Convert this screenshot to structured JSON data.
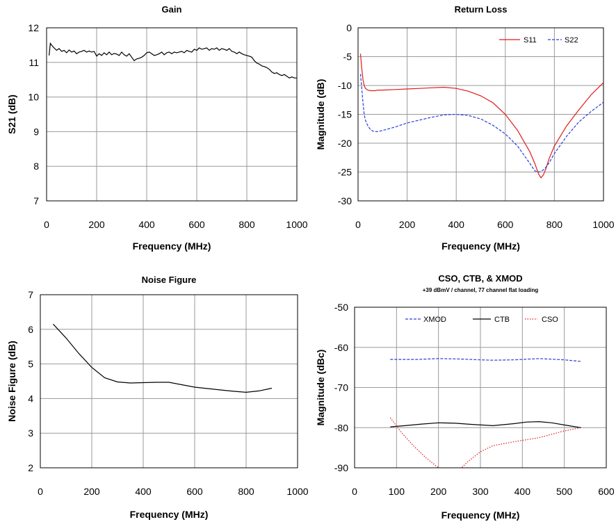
{
  "chart_data": [
    {
      "id": "gain",
      "type": "line",
      "title": "Gain",
      "xlabel": "Frequency (MHz)",
      "ylabel": "S21 (dB)",
      "xlim": [
        0,
        1000
      ],
      "ylim": [
        7,
        12
      ],
      "xticks": [
        "0",
        "200",
        "400",
        "600",
        "800",
        "1000"
      ],
      "yticks": [
        "7",
        "8",
        "9",
        "10",
        "11",
        "12"
      ],
      "grid": true,
      "legend": "none",
      "series": [
        {
          "color": "#000000",
          "dash": "solid",
          "x": [
            10,
            15,
            20,
            30,
            40,
            50,
            60,
            70,
            80,
            90,
            100,
            110,
            120,
            130,
            140,
            150,
            160,
            170,
            180,
            190,
            200,
            210,
            220,
            230,
            240,
            250,
            260,
            270,
            280,
            290,
            300,
            310,
            320,
            330,
            340,
            350,
            360,
            370,
            380,
            390,
            400,
            410,
            420,
            430,
            440,
            450,
            460,
            470,
            480,
            490,
            500,
            510,
            520,
            530,
            540,
            550,
            560,
            570,
            580,
            590,
            600,
            610,
            620,
            630,
            640,
            650,
            660,
            670,
            680,
            690,
            700,
            710,
            720,
            730,
            740,
            750,
            760,
            770,
            780,
            790,
            800,
            810,
            820,
            830,
            840,
            850,
            860,
            870,
            880,
            890,
            900,
            910,
            920,
            930,
            940,
            950,
            960,
            970,
            980,
            990,
            1000
          ],
          "values": [
            11.2,
            11.55,
            11.5,
            11.42,
            11.35,
            11.4,
            11.32,
            11.35,
            11.28,
            11.36,
            11.3,
            11.33,
            11.25,
            11.3,
            11.32,
            11.35,
            11.3,
            11.33,
            11.3,
            11.32,
            11.18,
            11.25,
            11.2,
            11.28,
            11.22,
            11.3,
            11.22,
            11.26,
            11.24,
            11.2,
            11.3,
            11.22,
            11.18,
            11.25,
            11.15,
            11.05,
            11.1,
            11.12,
            11.15,
            11.2,
            11.28,
            11.3,
            11.25,
            11.2,
            11.22,
            11.25,
            11.3,
            11.22,
            11.28,
            11.3,
            11.25,
            11.3,
            11.28,
            11.3,
            11.32,
            11.28,
            11.35,
            11.32,
            11.3,
            11.38,
            11.35,
            11.42,
            11.38,
            11.4,
            11.42,
            11.35,
            11.4,
            11.38,
            11.42,
            11.35,
            11.4,
            11.38,
            11.35,
            11.4,
            11.32,
            11.3,
            11.25,
            11.3,
            11.25,
            11.22,
            11.2,
            11.18,
            11.15,
            11.05,
            10.98,
            10.95,
            10.9,
            10.88,
            10.85,
            10.8,
            10.72,
            10.68,
            10.7,
            10.65,
            10.62,
            10.65,
            10.6,
            10.55,
            10.58,
            10.55,
            10.55
          ]
        }
      ]
    },
    {
      "id": "return-loss",
      "type": "line",
      "title": "Return Loss",
      "xlabel": "Frequency (MHz)",
      "ylabel": "Magnitude (dB)",
      "xlim": [
        0,
        1000
      ],
      "ylim": [
        -30,
        0
      ],
      "xticks": [
        "0",
        "200",
        "400",
        "600",
        "800",
        "1000"
      ],
      "yticks": [
        "-30",
        "-25",
        "-20",
        "-15",
        "-10",
        "-5",
        "0"
      ],
      "grid": true,
      "legend": "top-right",
      "series": [
        {
          "name": "S11",
          "color": "#e01b1b",
          "dash": "solid",
          "x": [
            10,
            15,
            20,
            25,
            30,
            40,
            50,
            60,
            70,
            80,
            100,
            150,
            200,
            250,
            300,
            350,
            400,
            450,
            500,
            550,
            600,
            650,
            700,
            720,
            735,
            745,
            755,
            765,
            780,
            800,
            850,
            900,
            950,
            1000
          ],
          "values": [
            -4.5,
            -7,
            -9,
            -10,
            -10.5,
            -10.8,
            -10.9,
            -10.9,
            -10.9,
            -10.8,
            -10.8,
            -10.7,
            -10.6,
            -10.5,
            -10.4,
            -10.3,
            -10.5,
            -11,
            -11.8,
            -13,
            -15,
            -17.8,
            -21.5,
            -23.5,
            -25.3,
            -26,
            -25.5,
            -24.5,
            -22.5,
            -20.5,
            -17,
            -14.2,
            -11.6,
            -9.5
          ]
        },
        {
          "name": "S22",
          "color": "#2a3fd6",
          "dash": "dashed",
          "x": [
            10,
            15,
            20,
            25,
            30,
            40,
            50,
            60,
            70,
            80,
            90,
            100,
            150,
            200,
            250,
            300,
            350,
            400,
            450,
            500,
            550,
            600,
            650,
            700,
            720,
            740,
            760,
            780,
            800,
            850,
            900,
            950,
            1000
          ],
          "values": [
            -8,
            -10.5,
            -13,
            -15,
            -16,
            -17,
            -17.6,
            -17.9,
            -18,
            -18,
            -17.9,
            -17.8,
            -17.2,
            -16.5,
            -16,
            -15.5,
            -15.1,
            -15,
            -15.2,
            -15.8,
            -16.9,
            -18.4,
            -20.5,
            -23.5,
            -24.8,
            -25,
            -24.5,
            -23.3,
            -21.8,
            -18.8,
            -16.3,
            -14.5,
            -12.9
          ]
        }
      ]
    },
    {
      "id": "noise-figure",
      "type": "line",
      "title": "Noise Figure",
      "xlabel": "Frequency (MHz)",
      "ylabel": "Noise Figure (dB)",
      "xlim": [
        0,
        1000
      ],
      "ylim": [
        2,
        7
      ],
      "xticks": [
        "0",
        "200",
        "400",
        "600",
        "800",
        "1000"
      ],
      "yticks": [
        "2",
        "3",
        "4",
        "5",
        "6",
        "7"
      ],
      "grid": true,
      "legend": "none",
      "series": [
        {
          "color": "#000000",
          "dash": "solid",
          "x": [
            50,
            100,
            150,
            200,
            250,
            300,
            350,
            400,
            450,
            500,
            550,
            600,
            650,
            700,
            750,
            800,
            850,
            900
          ],
          "values": [
            6.15,
            5.75,
            5.3,
            4.9,
            4.6,
            4.48,
            4.45,
            4.46,
            4.47,
            4.47,
            4.4,
            4.33,
            4.29,
            4.25,
            4.21,
            4.18,
            4.22,
            4.3
          ]
        }
      ]
    },
    {
      "id": "cso-ctb-xmod",
      "type": "line",
      "title": "CSO, CTB, & XMOD",
      "subtitle": "+39 dBmV / channel, 77 channel flat loading",
      "xlabel": "Frequency (MHz)",
      "ylabel": "Magnitude (dBc)",
      "xlim": [
        0,
        600
      ],
      "ylim": [
        -90,
        -50
      ],
      "xticks": [
        "0",
        "100",
        "200",
        "300",
        "400",
        "500",
        "600"
      ],
      "yticks": [
        "-90",
        "-80",
        "-70",
        "-60",
        "-50"
      ],
      "grid": true,
      "legend": "top",
      "series": [
        {
          "name": "XMOD",
          "color": "#2a3fd6",
          "dash": "dashed",
          "x": [
            85,
            150,
            200,
            250,
            300,
            330,
            380,
            440,
            500,
            540
          ],
          "values": [
            -63,
            -63,
            -62.8,
            -62.9,
            -63.1,
            -63.2,
            -63.1,
            -62.8,
            -63.1,
            -63.5
          ]
        },
        {
          "name": "CTB",
          "color": "#000000",
          "dash": "solid",
          "x": [
            85,
            120,
            160,
            200,
            240,
            280,
            330,
            380,
            410,
            440,
            470,
            510,
            540
          ],
          "values": [
            -79.8,
            -79.5,
            -79.1,
            -78.8,
            -78.9,
            -79.2,
            -79.5,
            -79,
            -78.6,
            -78.5,
            -78.8,
            -79.5,
            -80
          ]
        },
        {
          "name": "CSO",
          "color": "#e01b1b",
          "dash": "dotted",
          "x": [
            85,
            110,
            140,
            170,
            200,
            215,
            245,
            270,
            300,
            330,
            380,
            440,
            500,
            540
          ],
          "values": [
            -77.5,
            -81,
            -84.5,
            -87.5,
            -90,
            -92,
            -91,
            -88.5,
            -86,
            -84.5,
            -83.5,
            -82.5,
            -80.8,
            -80
          ]
        }
      ]
    }
  ]
}
